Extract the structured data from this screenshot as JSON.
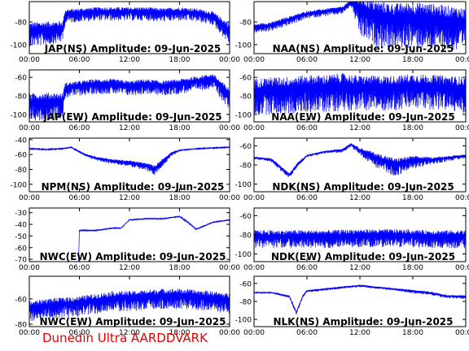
{
  "footer": "Dunedin Ultra AARDDVARK",
  "colors": {
    "trace": "#0000ff",
    "frame": "#000000",
    "footer": "#e00000"
  },
  "chart_data": [
    {
      "type": "line",
      "title": "JAP(NS) Amplitude: 09-Jun-2025",
      "x_ticks": [
        "00:00",
        "06:00",
        "12:00",
        "18:00",
        "00:00"
      ],
      "y_ticks": [
        -100,
        -80
      ],
      "ylim": [
        -108,
        -62
      ],
      "series": [
        {
          "x": [
            0,
            2,
            4,
            4.3,
            6,
            8,
            10,
            12,
            14,
            16,
            18,
            20,
            22,
            24
          ],
          "values": [
            -86,
            -85,
            -84,
            -72,
            -71,
            -70,
            -70,
            -70,
            -70,
            -71,
            -70,
            -71,
            -74,
            -86
          ],
          "spread": [
            16,
            16,
            14,
            9,
            9,
            9,
            9,
            9,
            9,
            9,
            9,
            9,
            9,
            14
          ]
        }
      ]
    },
    {
      "type": "line",
      "title": "NAA(NS) Amplitude: 09-Jun-2025",
      "x_ticks": [
        "00:00",
        "06:00",
        "12:00",
        "18:00",
        "00:00"
      ],
      "y_ticks": [
        -100,
        -80
      ],
      "ylim": [
        -108,
        -62
      ],
      "series": [
        {
          "x": [
            0,
            2,
            4,
            6,
            8,
            10,
            11,
            12,
            14,
            16,
            18,
            20,
            22,
            24
          ],
          "values": [
            -84,
            -82,
            -77,
            -72,
            -70,
            -68,
            -62,
            -66,
            -72,
            -74,
            -73,
            -74,
            -76,
            -78
          ],
          "spread": [
            6,
            6,
            6,
            5,
            5,
            5,
            4,
            28,
            30,
            30,
            30,
            30,
            30,
            30
          ]
        }
      ]
    },
    {
      "type": "line",
      "title": "JAP(EW) Amplitude: 09-Jun-2025",
      "x_ticks": [
        "00:00",
        "06:00",
        "12:00",
        "18:00",
        "00:00"
      ],
      "y_ticks": [
        -100,
        -80,
        -60
      ],
      "ylim": [
        -108,
        -52
      ],
      "series": [
        {
          "x": [
            0,
            2,
            4,
            4.3,
            6,
            8,
            10,
            12,
            14,
            16,
            18,
            20,
            22,
            24
          ],
          "values": [
            -85,
            -84,
            -84,
            -70,
            -68,
            -66,
            -66,
            -68,
            -66,
            -68,
            -66,
            -63,
            -60,
            -78
          ],
          "spread": [
            22,
            22,
            20,
            12,
            12,
            12,
            12,
            12,
            12,
            12,
            12,
            12,
            12,
            18
          ]
        }
      ]
    },
    {
      "type": "line",
      "title": "NAA(EW) Amplitude: 09-Jun-2025",
      "x_ticks": [
        "00:00",
        "06:00",
        "12:00",
        "18:00",
        "00:00"
      ],
      "y_ticks": [
        -100,
        -80,
        -60
      ],
      "ylim": [
        -108,
        -52
      ],
      "series": [
        {
          "x": [
            0,
            2,
            4,
            6,
            8,
            10,
            12,
            14,
            16,
            18,
            20,
            22,
            24
          ],
          "values": [
            -72,
            -70,
            -70,
            -68,
            -68,
            -66,
            -68,
            -68,
            -68,
            -66,
            -67,
            -68,
            -70
          ],
          "spread": [
            30,
            30,
            30,
            30,
            30,
            30,
            28,
            28,
            28,
            28,
            28,
            28,
            30
          ]
        }
      ]
    },
    {
      "type": "line",
      "title": "NPM(NS) Amplitude: 09-Jun-2025",
      "x_ticks": [
        "00:00",
        "06:00",
        "12:00",
        "18:00",
        "00:00"
      ],
      "y_ticks": [
        -100,
        -80,
        -60,
        -40
      ],
      "ylim": [
        -110,
        -38
      ],
      "series": [
        {
          "x": [
            0,
            2,
            4,
            5,
            6,
            7,
            8,
            10,
            12,
            14,
            15,
            16,
            17,
            18,
            20,
            22,
            24
          ],
          "values": [
            -52,
            -53,
            -52,
            -50,
            -56,
            -61,
            -64,
            -68,
            -70,
            -74,
            -78,
            -68,
            -58,
            -54,
            -52,
            -51,
            -50
          ],
          "spread": [
            1,
            1,
            1,
            1,
            2,
            3,
            4,
            5,
            6,
            8,
            10,
            8,
            4,
            2,
            1,
            1,
            1
          ]
        }
      ]
    },
    {
      "type": "line",
      "title": "NDK(NS) Amplitude: 09-Jun-2025",
      "x_ticks": [
        "00:00",
        "06:00",
        "12:00",
        "18:00",
        "00:00"
      ],
      "y_ticks": [
        -100,
        -80,
        -60
      ],
      "ylim": [
        -108,
        -52
      ],
      "series": [
        {
          "x": [
            0,
            2,
            3,
            4,
            5,
            6,
            8,
            10,
            11,
            12,
            14,
            16,
            18,
            20,
            22,
            24
          ],
          "values": [
            -72,
            -74,
            -82,
            -90,
            -78,
            -70,
            -66,
            -64,
            -58,
            -64,
            -72,
            -78,
            -74,
            -74,
            -72,
            -70
          ],
          "spread": [
            2,
            3,
            4,
            4,
            3,
            2,
            2,
            3,
            3,
            6,
            12,
            14,
            10,
            6,
            4,
            3
          ]
        }
      ]
    },
    {
      "type": "line",
      "title": "NWC(EW) Amplitude: 09-Jun-2025",
      "x_ticks": [
        "00:00",
        "06:00",
        "12:00",
        "18:00",
        "00:00"
      ],
      "y_ticks": [
        -70,
        -60,
        -50,
        -40,
        -30
      ],
      "ylim": [
        -72,
        -26
      ],
      "series": [
        {
          "x": [
            0,
            5.9,
            6,
            8,
            10,
            11,
            12,
            14,
            16,
            18,
            19,
            20,
            22,
            24
          ],
          "values": [
            -72,
            -72,
            -45,
            -45,
            -43,
            -43,
            -36,
            -35,
            -35,
            -33,
            -38,
            -44,
            -38,
            -36
          ],
          "spread": [
            0,
            0,
            1,
            1,
            1,
            1,
            1,
            1,
            1,
            1,
            1,
            1,
            1,
            1
          ]
        }
      ]
    },
    {
      "type": "line",
      "title": "NDK(EW) Amplitude: 09-Jun-2025",
      "x_ticks": [
        "00:00",
        "06:00",
        "12:00",
        "18:00",
        "00:00"
      ],
      "y_ticks": [
        -100,
        -80,
        -60
      ],
      "ylim": [
        -108,
        -52
      ],
      "series": [
        {
          "x": [
            0,
            4,
            8,
            12,
            16,
            20,
            24
          ],
          "values": [
            -80,
            -80,
            -80,
            -79,
            -79,
            -80,
            -80
          ],
          "spread": [
            14,
            14,
            14,
            14,
            14,
            14,
            14
          ]
        }
      ]
    },
    {
      "type": "line",
      "title": "NWC(EW) Amplitude: 09-Jun-2025",
      "x_ticks": [
        "00:00",
        "06:00",
        "12:00",
        "18:00",
        "00:00"
      ],
      "y_ticks": [
        -80,
        -60
      ],
      "ylim": [
        -82,
        -42
      ],
      "series": [
        {
          "x": [
            0,
            2,
            4,
            6,
            8,
            10,
            12,
            14,
            16,
            18,
            20,
            22,
            24
          ],
          "values": [
            -66,
            -64,
            -63,
            -62,
            -60,
            -58,
            -58,
            -57,
            -56,
            -56,
            -57,
            -58,
            -60
          ],
          "spread": [
            12,
            12,
            12,
            12,
            12,
            12,
            12,
            12,
            12,
            12,
            12,
            12,
            12
          ]
        }
      ]
    },
    {
      "type": "line",
      "title": "NLK(NS) Amplitude: 09-Jun-2025",
      "x_ticks": [
        "00:00",
        "06:00",
        "12:00",
        "18:00",
        "00:00"
      ],
      "y_ticks": [
        -100,
        -80,
        -60
      ],
      "ylim": [
        -108,
        -52
      ],
      "series": [
        {
          "x": [
            0,
            2,
            4,
            4.8,
            5.5,
            6,
            8,
            10,
            12,
            14,
            16,
            18,
            20,
            22,
            24
          ],
          "values": [
            -70,
            -70,
            -74,
            -92,
            -74,
            -68,
            -66,
            -64,
            -62,
            -64,
            -66,
            -68,
            -70,
            -74,
            -74
          ],
          "spread": [
            1,
            1,
            2,
            3,
            2,
            2,
            2,
            2,
            2,
            2,
            2,
            3,
            3,
            3,
            3
          ]
        }
      ]
    }
  ]
}
